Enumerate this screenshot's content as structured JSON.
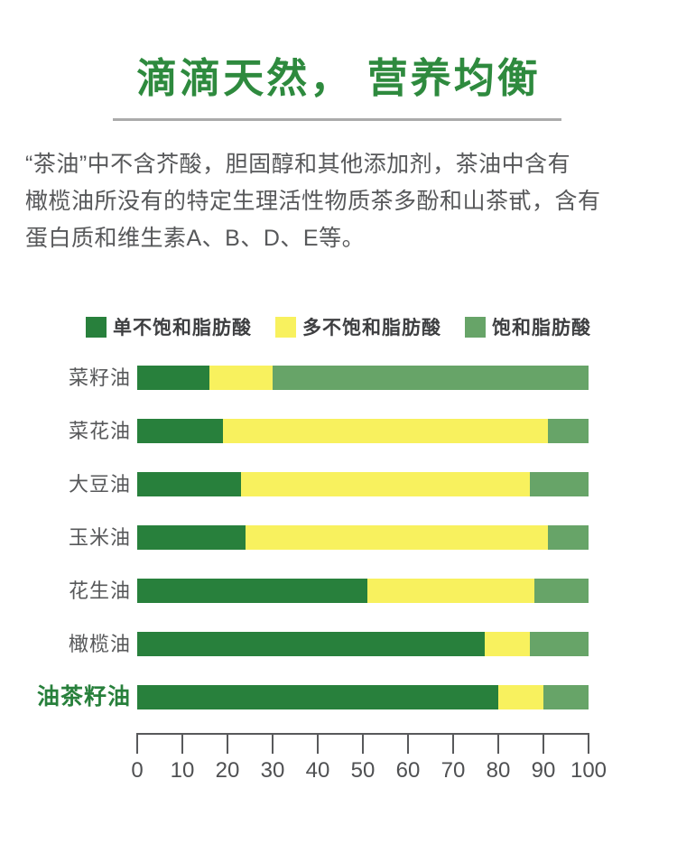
{
  "page": {
    "title": "滴滴天然， 营养均衡",
    "intro": {
      "lines": [
        "“茶油”中不含芥酸，胆固醇和其他添加剂，茶油中含有",
        "橄榄油所没有的特定生理活性物质茶多酚和山茶甙，含有",
        "蛋白质和维生素A、B、D、E等。"
      ]
    }
  },
  "colors": {
    "title_green": "#2e8a3e",
    "highlight_green": "#28803c",
    "body_text": "#57585a",
    "divider_gray": "#ababab",
    "axis_gray": "#58595b"
  },
  "chart_data": {
    "type": "bar",
    "stacked": true,
    "orientation": "horizontal",
    "title": "",
    "xlabel": "",
    "ylabel": "",
    "xlim": [
      0,
      100
    ],
    "x_ticks": [
      0,
      10,
      20,
      30,
      40,
      50,
      60,
      70,
      80,
      90,
      100
    ],
    "grid": false,
    "legend_position": "top",
    "categories": [
      "菜籽油",
      "菜花油",
      "大豆油",
      "玉米油",
      "花生油",
      "橄榄油",
      "油茶籽油"
    ],
    "highlight_category": "油茶籽油",
    "series": [
      {
        "name": "单不饱和脂肪酸",
        "color": "#28803c",
        "values": [
          16,
          19,
          23,
          24,
          51,
          77,
          80
        ]
      },
      {
        "name": "多不饱和脂肪酸",
        "color": "#f8f15e",
        "values": [
          14,
          72,
          64,
          67,
          37,
          10,
          10
        ]
      },
      {
        "name": "饱和脂肪酸",
        "color": "#67a468",
        "values": [
          70,
          9,
          13,
          9,
          12,
          13,
          10
        ]
      }
    ]
  }
}
